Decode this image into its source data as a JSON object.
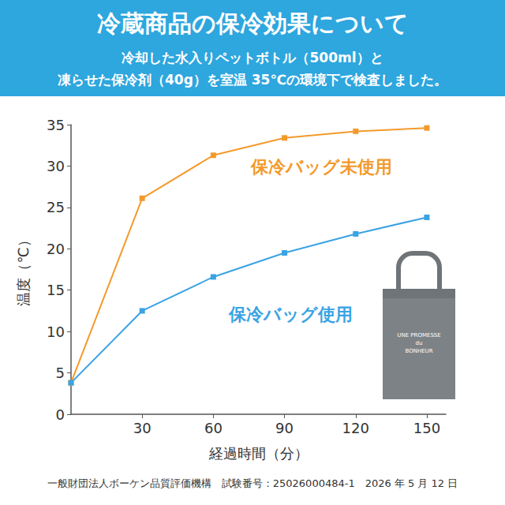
{
  "header": {
    "title": "冷蔵商品の保冷効果について",
    "subtitle": [
      "冷却した水入りペットボトル（500ml）と",
      "凍らせた保冷剤（40g）を室温 35℃の環境下で検査しました。"
    ]
  },
  "chart_data": {
    "type": "line",
    "x": [
      0,
      30,
      60,
      90,
      120,
      150
    ],
    "series": [
      {
        "name": "保冷バッグ未使用",
        "color": "#f39a2b",
        "values": [
          3.8,
          26.1,
          31.3,
          33.4,
          34.2,
          34.6
        ]
      },
      {
        "name": "保冷バッグ使用",
        "color": "#3aa3e3",
        "values": [
          3.8,
          12.5,
          16.6,
          19.5,
          21.8,
          23.8
        ]
      }
    ],
    "xlim": [
      0,
      158
    ],
    "xticks": [
      30,
      60,
      90,
      120,
      150
    ],
    "ylim": [
      0,
      35
    ],
    "yticks": [
      0,
      5,
      10,
      15,
      20,
      25,
      30,
      35
    ],
    "x_label": "経過時間（分）",
    "y_label": "温度（℃）",
    "grid": false,
    "marker": "square",
    "annotations": [
      "UNE PROMESSE",
      "du",
      "BONHEUR"
    ]
  },
  "footer": "一般財団法人ボーケン品質評価機構　試験番号：25026000484-1　2026 年 5 月 12 日"
}
